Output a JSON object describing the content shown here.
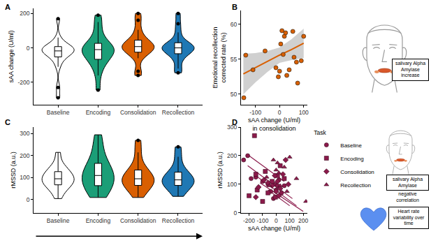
{
  "chart_data": [
    {
      "panel": "A",
      "type": "violin",
      "ylabel": "sAA change (U/ml)",
      "categories": [
        "Baseline",
        "Encoding",
        "Consolidation",
        "Recollection"
      ],
      "colors": [
        "#ffffff",
        "#1b9e77",
        "#d95f02",
        "#1f78b4"
      ],
      "values": [
        [
          -290,
          -230,
          -110,
          -75,
          -60,
          -45,
          -35,
          -30,
          -25,
          -20,
          -15,
          -10,
          -5,
          0,
          5,
          10,
          15,
          30,
          60,
          170
        ],
        [
          -245,
          -160,
          -110,
          -85,
          -70,
          -55,
          -40,
          -30,
          -20,
          -10,
          -5,
          0,
          5,
          15,
          30,
          60,
          100,
          150,
          190
        ],
        [
          -160,
          -135,
          -60,
          -35,
          -25,
          -15,
          -5,
          0,
          5,
          10,
          15,
          25,
          35,
          45,
          70,
          105,
          160,
          200
        ],
        [
          -145,
          -120,
          -70,
          -45,
          -30,
          -20,
          -10,
          -5,
          0,
          5,
          10,
          15,
          25,
          45,
          90,
          140,
          200
        ]
      ],
      "ylim": [
        -330,
        230
      ],
      "yticks": [
        -200,
        0,
        200
      ],
      "grid": false
    },
    {
      "panel": "B",
      "type": "scatter",
      "xlabel": "sAA change (U/ml) in consolidation",
      "ylabel": "Emotional recollection corrected rate (%)",
      "color": "#d95f02",
      "x": [
        -148,
        -140,
        -110,
        -60,
        -15,
        -5,
        0,
        5,
        10,
        15,
        20,
        25,
        30,
        40,
        55,
        60,
        70,
        75,
        90,
        100
      ],
      "values": [
        49.5,
        55.6,
        53.5,
        56.2,
        53.8,
        52.5,
        53.3,
        57.2,
        59.1,
        55.7,
        58.3,
        58.8,
        52.7,
        53.5,
        59.0,
        55.3,
        54.6,
        51.6,
        54.8,
        58.3
      ],
      "fit_x": [
        -150,
        -100,
        -50,
        0,
        50,
        100
      ],
      "fit_values": [
        52.9,
        53.8,
        54.7,
        55.6,
        56.4,
        57.3
      ],
      "ci_lower": [
        50.0,
        51.7,
        53.2,
        54.5,
        54.9,
        55.2
      ],
      "ci_upper": [
        55.8,
        55.9,
        56.2,
        56.7,
        57.9,
        59.4
      ],
      "xlim": [
        -160,
        115
      ],
      "xticks": [
        -100,
        0,
        100
      ],
      "ylim": [
        48.5,
        62
      ],
      "yticks": [
        50,
        55,
        60
      ],
      "grid": false
    },
    {
      "panel": "C",
      "type": "violin",
      "ylabel": "rMSSD (a.u.)",
      "categories": [
        "Baseline",
        "Encoding",
        "Consolidation",
        "Recollection"
      ],
      "colors": [
        "#ffffff",
        "#1b9e77",
        "#d95f02",
        "#1f78b4"
      ],
      "values": [
        [
          5,
          40,
          55,
          65,
          75,
          80,
          90,
          95,
          100,
          110,
          120,
          130,
          140,
          160,
          215
        ],
        [
          10,
          30,
          45,
          60,
          75,
          90,
          100,
          110,
          120,
          135,
          150,
          170,
          200,
          250,
          295
        ],
        [
          10,
          40,
          55,
          65,
          75,
          85,
          90,
          100,
          110,
          120,
          135,
          160,
          215,
          270
        ],
        [
          15,
          40,
          55,
          65,
          75,
          80,
          85,
          95,
          105,
          115,
          125,
          150,
          195,
          240
        ]
      ],
      "ylim": [
        -60,
        330
      ],
      "yticks": [
        0,
        100,
        200,
        300
      ],
      "grid": false
    },
    {
      "panel": "D",
      "type": "scatter",
      "xlabel": "sAA change (U/ml)",
      "ylabel": "rMSSD (a.u.)",
      "color": "#8b1a4b",
      "legend": "right",
      "legend_title": "Task",
      "series": [
        {
          "name": "Baseline",
          "marker": "circle",
          "x": [
            -240,
            -210,
            -185,
            -150,
            -100,
            -60,
            -40,
            -20,
            -10,
            0,
            10,
            20,
            40,
            60
          ],
          "values": [
            185,
            200,
            120,
            125,
            110,
            100,
            75,
            50,
            100,
            80,
            95,
            115,
            70,
            95
          ]
        },
        {
          "name": "Encoding",
          "marker": "square",
          "x": [
            -160,
            -200,
            -150,
            -140,
            -100,
            -80,
            -60,
            -30,
            -5,
            10,
            30,
            60
          ],
          "values": [
            270,
            60,
            135,
            80,
            40,
            145,
            70,
            110,
            55,
            130,
            165,
            120
          ]
        },
        {
          "name": "Consolidation",
          "marker": "diamond",
          "x": [
            -150,
            -130,
            -90,
            -60,
            -30,
            -10,
            0,
            10,
            20,
            30,
            50,
            70,
            90
          ],
          "values": [
            55,
            90,
            115,
            105,
            95,
            130,
            75,
            110,
            60,
            85,
            135,
            185,
            100
          ]
        },
        {
          "name": "Recollection",
          "marker": "triangle",
          "x": [
            -70,
            -50,
            -20,
            0,
            10,
            20,
            30,
            60,
            80,
            100,
            150,
            220
          ],
          "values": [
            125,
            95,
            185,
            150,
            175,
            140,
            95,
            160,
            75,
            195,
            120,
            40
          ]
        }
      ],
      "lines": [
        {
          "x": [
            -200,
            60
          ],
          "values": [
            200,
            110
          ]
        },
        {
          "x": [
            -210,
            120
          ],
          "values": [
            165,
            50
          ]
        },
        {
          "x": [
            -150,
            150
          ],
          "values": [
            130,
            25
          ]
        },
        {
          "x": [
            -120,
            200
          ],
          "values": [
            105,
            5
          ]
        },
        {
          "x": [
            -60,
            100
          ],
          "values": [
            80,
            25
          ]
        }
      ],
      "xlim": [
        -260,
        230
      ],
      "xticks": [
        -200,
        -100,
        0,
        100,
        200
      ],
      "ylim": [
        0,
        300
      ],
      "yticks": [
        0,
        100,
        200,
        300
      ],
      "grid": false
    }
  ],
  "diagram": {
    "top": {
      "boxes": [
        "salivary Alpha Amylase increase"
      ]
    },
    "bottom": {
      "boxes": [
        "salivary Alpha Amylase",
        "Heart rate variability over time"
      ],
      "label": "negative correlation"
    }
  }
}
